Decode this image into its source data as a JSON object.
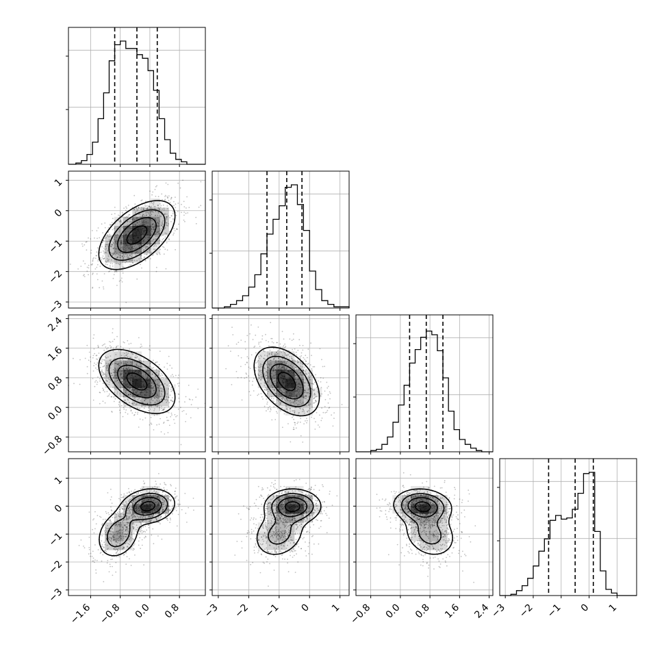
{
  "chart_data": {
    "type": "corner",
    "parameters": 4,
    "colors": {
      "line": "#000000",
      "grid": "#b0b0b0",
      "density": "#000000",
      "background": "#ffffff"
    },
    "grid": true,
    "ranges": [
      [
        -2.2,
        1.5
      ],
      [
        -3.2,
        1.3
      ],
      [
        -1.2,
        2.5
      ],
      [
        -3.2,
        1.7
      ]
    ],
    "ticks": [
      [
        -1.6,
        -0.8,
        0.0,
        0.8
      ],
      [
        -3,
        -2,
        -1,
        0,
        1
      ],
      [
        -0.8,
        0.0,
        0.8,
        1.6,
        2.4
      ],
      [
        -3,
        -2,
        -1,
        0,
        1
      ]
    ],
    "tick_labels": [
      [
        "−1.6",
        "−0.8",
        "0.0",
        "0.8"
      ],
      [
        "−3",
        "−2",
        "−1",
        "0",
        "1"
      ],
      [
        "−0.8",
        "0.0",
        "0.8",
        "1.6",
        "2.4"
      ],
      [
        "−3",
        "−2",
        "−1",
        "0",
        "1"
      ]
    ],
    "quantiles": [
      [
        -0.95,
        -0.35,
        0.2
      ],
      [
        -1.4,
        -0.75,
        -0.25
      ],
      [
        0.25,
        0.7,
        1.15
      ],
      [
        -1.45,
        -0.5,
        0.15
      ]
    ],
    "histograms": [
      {
        "edges": [
          -2.2,
          -2.0,
          -1.85,
          -1.7,
          -1.55,
          -1.4,
          -1.25,
          -1.1,
          -0.95,
          -0.8,
          -0.65,
          -0.5,
          -0.35,
          -0.2,
          -0.05,
          0.1,
          0.25,
          0.4,
          0.55,
          0.7,
          0.85,
          1.0,
          1.15,
          1.5
        ],
        "counts": [
          0,
          0.01,
          0.03,
          0.08,
          0.18,
          0.37,
          0.58,
          0.84,
          0.97,
          1.0,
          0.94,
          0.94,
          0.89,
          0.86,
          0.76,
          0.6,
          0.37,
          0.2,
          0.09,
          0.04,
          0.02,
          0.0,
          0.0
        ]
      },
      {
        "edges": [
          -3.2,
          -2.8,
          -2.6,
          -2.4,
          -2.2,
          -2.0,
          -1.8,
          -1.6,
          -1.4,
          -1.2,
          -1.0,
          -0.8,
          -0.6,
          -0.4,
          -0.2,
          0.0,
          0.2,
          0.4,
          0.6,
          0.8,
          1.3
        ],
        "counts": [
          0,
          0.01,
          0.03,
          0.06,
          0.1,
          0.17,
          0.27,
          0.44,
          0.6,
          0.72,
          0.83,
          0.98,
          1.0,
          0.84,
          0.63,
          0.3,
          0.15,
          0.06,
          0.03,
          0.01
        ]
      },
      {
        "edges": [
          -1.2,
          -0.8,
          -0.65,
          -0.5,
          -0.35,
          -0.2,
          -0.05,
          0.1,
          0.25,
          0.4,
          0.55,
          0.7,
          0.85,
          1.0,
          1.15,
          1.3,
          1.45,
          1.6,
          1.75,
          1.9,
          2.05,
          2.2,
          2.5
        ],
        "counts": [
          0,
          0.01,
          0.02,
          0.06,
          0.12,
          0.24,
          0.38,
          0.54,
          0.72,
          0.83,
          0.93,
          0.98,
          0.95,
          0.82,
          0.6,
          0.33,
          0.18,
          0.1,
          0.06,
          0.03,
          0.01,
          0.0
        ]
      },
      {
        "edges": [
          -3.2,
          -2.8,
          -2.6,
          -2.4,
          -2.2,
          -2.0,
          -1.8,
          -1.6,
          -1.4,
          -1.2,
          -1.0,
          -0.8,
          -0.6,
          -0.4,
          -0.2,
          0.0,
          0.2,
          0.4,
          0.6,
          0.8,
          1.0,
          1.7
        ],
        "counts": [
          0,
          0.01,
          0.04,
          0.08,
          0.14,
          0.24,
          0.36,
          0.46,
          0.61,
          0.65,
          0.62,
          0.63,
          0.7,
          0.83,
          0.99,
          1.0,
          0.52,
          0.2,
          0.05,
          0.02,
          0.0
        ]
      }
    ],
    "joint_distributions": [
      {
        "row": 1,
        "col": 0,
        "components": [
          {
            "weight": 1.0,
            "mean": [
              -0.35,
              -0.8
            ],
            "sd": [
              0.5,
              0.55
            ],
            "rho": 0.55
          }
        ]
      },
      {
        "row": 2,
        "col": 0,
        "components": [
          {
            "weight": 1.0,
            "mean": [
              -0.35,
              0.7
            ],
            "sd": [
              0.5,
              0.42
            ],
            "rho": -0.5
          }
        ]
      },
      {
        "row": 2,
        "col": 1,
        "components": [
          {
            "weight": 1.0,
            "mean": [
              -0.75,
              0.7
            ],
            "sd": [
              0.52,
              0.45
            ],
            "rho": -0.45
          }
        ]
      },
      {
        "row": 3,
        "col": 0,
        "components": [
          {
            "weight": 0.6,
            "mean": [
              -0.05,
              0.0
            ],
            "sd": [
              0.35,
              0.3
            ],
            "rho": 0.15
          },
          {
            "weight": 0.4,
            "mean": [
              -0.85,
              -1.0
            ],
            "sd": [
              0.3,
              0.45
            ],
            "rho": 0.25
          }
        ]
      },
      {
        "row": 3,
        "col": 1,
        "components": [
          {
            "weight": 0.6,
            "mean": [
              -0.55,
              0.0
            ],
            "sd": [
              0.45,
              0.3
            ],
            "rho": 0.0
          },
          {
            "weight": 0.4,
            "mean": [
              -1.0,
              -1.0
            ],
            "sd": [
              0.45,
              0.45
            ],
            "rho": 0.2
          }
        ]
      },
      {
        "row": 3,
        "col": 2,
        "components": [
          {
            "weight": 0.6,
            "mean": [
              0.6,
              0.0
            ],
            "sd": [
              0.38,
              0.3
            ],
            "rho": -0.1
          },
          {
            "weight": 0.4,
            "mean": [
              0.8,
              -1.0
            ],
            "sd": [
              0.38,
              0.45
            ],
            "rho": -0.2
          }
        ]
      }
    ]
  }
}
